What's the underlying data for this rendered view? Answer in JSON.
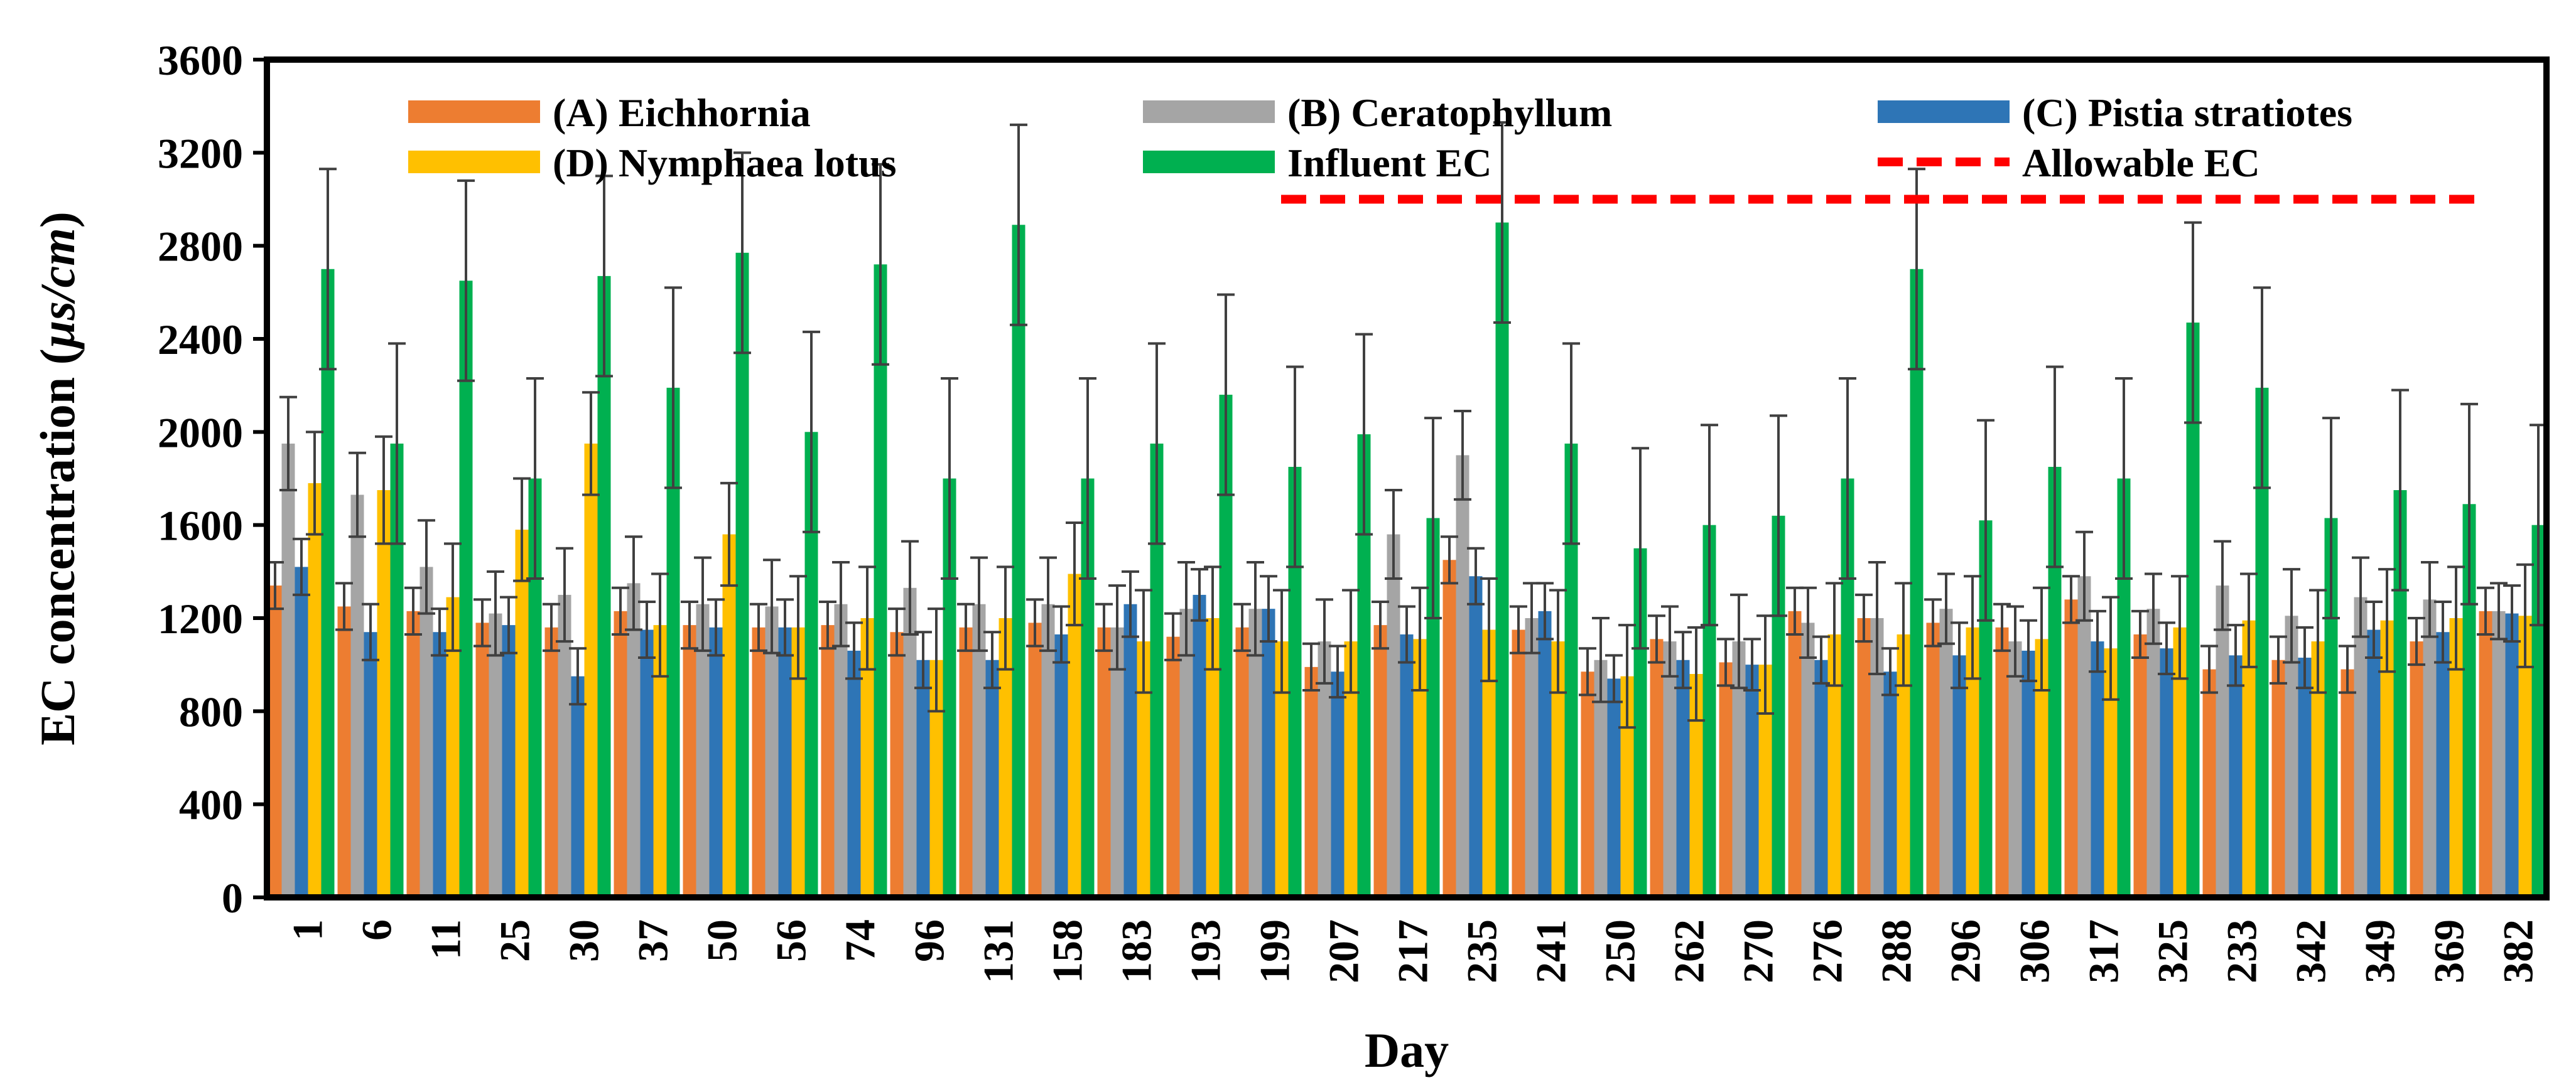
{
  "chart_data": {
    "type": "bar",
    "ylabel_prefix": "EC  concentration (",
    "ylabel_unit": "µs/cm",
    "ylabel_suffix": ")",
    "xlabel": "Day",
    "ylim": [
      0,
      3600
    ],
    "yticks": [
      0,
      400,
      800,
      1200,
      1600,
      2000,
      2400,
      2800,
      3200,
      3600
    ],
    "grid": false,
    "legend_position": "top",
    "categories": [
      "1",
      "6",
      "11",
      "25",
      "30",
      "37",
      "50",
      "56",
      "74",
      "96",
      "131",
      "158",
      "183",
      "193",
      "199",
      "207",
      "217",
      "235",
      "241",
      "250",
      "262",
      "270",
      "276",
      "288",
      "296",
      "306",
      "317",
      "325",
      "233",
      "342",
      "349",
      "369",
      "382"
    ],
    "series": [
      {
        "name": "(A) Eichhornia",
        "color": "#ED7D31",
        "values": [
          1340,
          1250,
          1230,
          1180,
          1160,
          1230,
          1170,
          1160,
          1170,
          1140,
          1160,
          1180,
          1160,
          1120,
          1160,
          990,
          1170,
          1450,
          1150,
          970,
          1110,
          1010,
          1230,
          1200,
          1180,
          1160,
          1280,
          1130,
          980,
          1020,
          980,
          1100,
          1230
        ],
        "errors": [
          100,
          100,
          100,
          100,
          100,
          100,
          100,
          100,
          100,
          100,
          100,
          100,
          100,
          100,
          100,
          100,
          100,
          100,
          100,
          100,
          100,
          100,
          100,
          100,
          100,
          100,
          100,
          100,
          100,
          100,
          100,
          100,
          100
        ]
      },
      {
        "name": "(B) Ceratophyllum",
        "color": "#A5A5A5",
        "values": [
          1950,
          1730,
          1420,
          1220,
          1300,
          1350,
          1260,
          1250,
          1260,
          1330,
          1260,
          1260,
          1160,
          1240,
          1240,
          1100,
          1560,
          1900,
          1200,
          1020,
          1100,
          1100,
          1180,
          1200,
          1240,
          1100,
          1380,
          1240,
          1340,
          1210,
          1290,
          1280,
          1230
        ],
        "errors": [
          200,
          180,
          200,
          180,
          200,
          200,
          200,
          200,
          180,
          200,
          200,
          200,
          180,
          200,
          200,
          180,
          190,
          190,
          150,
          180,
          150,
          200,
          150,
          240,
          150,
          150,
          190,
          150,
          190,
          200,
          170,
          160,
          120
        ]
      },
      {
        "name": "(C) Pistia stratiotes",
        "color": "#2E75B6",
        "values": [
          1420,
          1140,
          1140,
          1170,
          950,
          1150,
          1160,
          1160,
          1060,
          1020,
          1020,
          1130,
          1260,
          1300,
          1240,
          970,
          1130,
          1380,
          1230,
          940,
          1020,
          1000,
          1020,
          970,
          1040,
          1060,
          1100,
          1070,
          1040,
          1030,
          1150,
          1140,
          1220
        ],
        "errors": [
          120,
          120,
          100,
          120,
          120,
          120,
          120,
          120,
          120,
          120,
          120,
          120,
          140,
          110,
          140,
          110,
          120,
          120,
          120,
          100,
          120,
          110,
          100,
          100,
          140,
          130,
          130,
          110,
          130,
          130,
          120,
          130,
          120
        ]
      },
      {
        "name": "(D) Nymphaea lotus",
        "color": "#FFC000",
        "values": [
          1780,
          1750,
          1290,
          1580,
          1950,
          1170,
          1560,
          1160,
          1200,
          1020,
          1200,
          1390,
          1100,
          1200,
          1100,
          1100,
          1110,
          1150,
          1100,
          950,
          960,
          1000,
          1130,
          1130,
          1160,
          1110,
          1070,
          1160,
          1190,
          1100,
          1190,
          1200,
          1210
        ],
        "errors": [
          220,
          230,
          230,
          220,
          220,
          220,
          220,
          220,
          220,
          220,
          220,
          220,
          220,
          220,
          220,
          220,
          220,
          220,
          220,
          220,
          200,
          210,
          220,
          220,
          220,
          220,
          220,
          220,
          200,
          220,
          220,
          220,
          220
        ]
      },
      {
        "name": "Influent EC",
        "color": "#00B050",
        "values": [
          2700,
          1950,
          2650,
          1800,
          2670,
          2190,
          2770,
          2000,
          2720,
          1800,
          2890,
          1800,
          1950,
          2160,
          1850,
          1990,
          1630,
          2900,
          1950,
          1500,
          1600,
          1640,
          1800,
          2700,
          1620,
          1850,
          1800,
          2470,
          2190,
          1630,
          1750,
          1690,
          1600
        ],
        "errors": [
          430,
          430,
          430,
          430,
          430,
          430,
          430,
          430,
          430,
          430,
          430,
          430,
          430,
          430,
          430,
          430,
          430,
          430,
          430,
          430,
          430,
          430,
          430,
          430,
          430,
          430,
          430,
          430,
          430,
          430,
          430,
          430,
          430
        ]
      }
    ],
    "reference_line": {
      "name": "Allowable EC",
      "value": 3000,
      "color": "#FF0000"
    },
    "error_bar_color": "#404040"
  }
}
